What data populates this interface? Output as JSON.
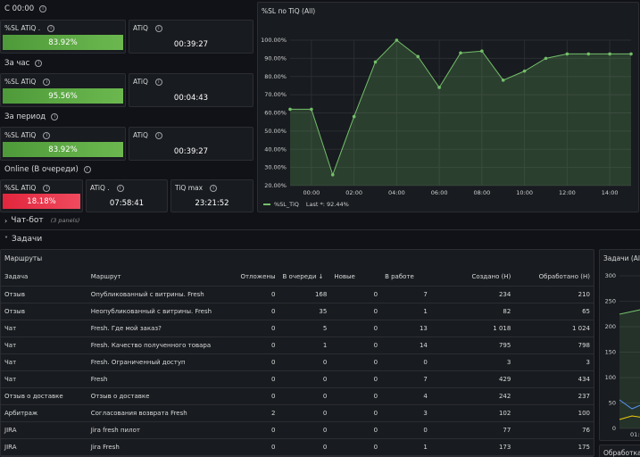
{
  "sections": {
    "c0000": "С 00:00",
    "hour": "За час",
    "period": "За период",
    "online": "Online (В очереди)",
    "chatbot": "Чат-бот",
    "chatbot_sub": "(3 panels)",
    "tasks": "Задачи"
  },
  "stats": {
    "c0000_sl_title": "%SL ATiQ .",
    "c0000_sl_value": "83.92%",
    "c0000_atiq_title": "ATiQ",
    "c0000_atiq_value": "00:39:27",
    "hour_sl_title": "%SL ATiQ",
    "hour_sl_value": "95.56%",
    "hour_atiq_title": "ATiQ",
    "hour_atiq_value": "00:04:43",
    "period_sl_title": "%SL ATiQ",
    "period_sl_value": "83.92%",
    "period_atiq_title": "ATiQ",
    "period_atiq_value": "00:39:27",
    "online_sl_title": "%SL ATiQ",
    "online_sl_value": "18.18%",
    "online_atiq_title": "ATiQ .",
    "online_atiq_value": "07:58:41",
    "online_tiqmax_title": "TiQ max",
    "online_tiqmax_value": "23:21:52"
  },
  "colors": {
    "ok": "#6cb84f",
    "bad": "#f04a5e",
    "series": "#73bf69"
  },
  "chart_data": {
    "type": "area",
    "title": "%SL по TiQ (All)",
    "x": [
      "23:00",
      "00:00",
      "01:00",
      "02:00",
      "03:00",
      "04:00",
      "05:00",
      "06:00",
      "07:00",
      "08:00",
      "09:00",
      "10:00",
      "11:00",
      "12:00",
      "13:00",
      "14:00",
      "15:00"
    ],
    "series": [
      {
        "name": "%SL_TiQ",
        "values": [
          62,
          62,
          26,
          58,
          88,
          100,
          91,
          74,
          93,
          94,
          78,
          83,
          90,
          92.44,
          92.44,
          92.44,
          92.44
        ]
      }
    ],
    "xticks": [
      "00:00",
      "02:00",
      "04:00",
      "06:00",
      "08:00",
      "10:00",
      "12:00",
      "14:00"
    ],
    "yticks": [
      "20.00%",
      "30.00%",
      "40.00%",
      "50.00%",
      "60.00%",
      "70.00%",
      "80.00%",
      "90.00%",
      "100.00%"
    ],
    "ylim": [
      20,
      100
    ],
    "legend": "%SL_TiQ",
    "legend_last": "Last *: 92.44%"
  },
  "routes": {
    "title": "Маршруты",
    "columns": [
      "Задача",
      "Маршрут",
      "Отложены",
      "В очереди ↓",
      "Новые",
      "В работе",
      "Создано (Н)",
      "Обработано (Н)"
    ],
    "rows": [
      [
        "Отзыв",
        "Опубликованный с витрины. Fresh",
        "0",
        "168",
        "0",
        "7",
        "234",
        "210"
      ],
      [
        "Отзыв",
        "Неопубликованный с витрины. Fresh",
        "0",
        "35",
        "0",
        "1",
        "82",
        "65"
      ],
      [
        "Чат",
        "Fresh. Где мой заказ?",
        "0",
        "5",
        "0",
        "13",
        "1 018",
        "1 024"
      ],
      [
        "Чат",
        "Fresh. Качество полученного товара",
        "0",
        "1",
        "0",
        "14",
        "795",
        "798"
      ],
      [
        "Чат",
        "Fresh. Ограниченный доступ",
        "0",
        "0",
        "0",
        "0",
        "3",
        "3"
      ],
      [
        "Чат",
        "Fresh",
        "0",
        "0",
        "0",
        "7",
        "429",
        "434"
      ],
      [
        "Отзыв о доставке",
        "Отзыв о доставке",
        "0",
        "0",
        "0",
        "4",
        "242",
        "237"
      ],
      [
        "Арбитраж",
        "Согласования возврата Fresh",
        "2",
        "0",
        "0",
        "3",
        "102",
        "100"
      ],
      [
        "JIRA",
        "Jira fresh пилот",
        "0",
        "0",
        "0",
        "0",
        "77",
        "76"
      ],
      [
        "JIRA",
        "Jira Fresh",
        "0",
        "0",
        "0",
        "1",
        "173",
        "175"
      ]
    ]
  },
  "side_panel": {
    "title": "Задачи (All",
    "yticks": [
      "300",
      "250",
      "200",
      "150",
      "100",
      "50",
      "0"
    ],
    "xtick": "01:0",
    "bottom_title": "Обработка"
  }
}
